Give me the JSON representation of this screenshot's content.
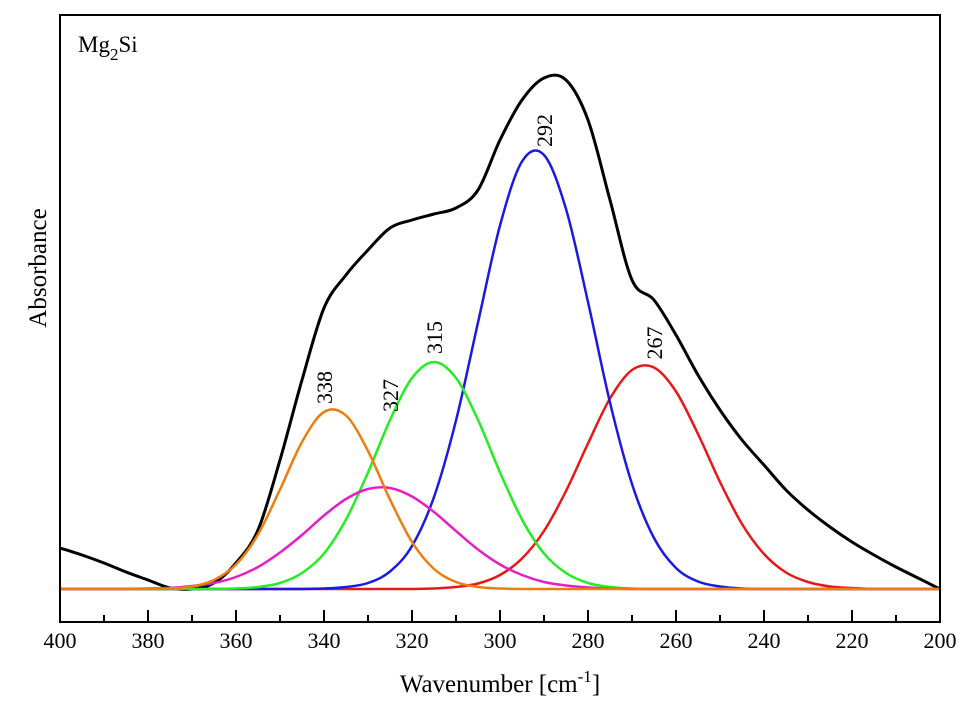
{
  "chart_data": {
    "type": "line",
    "sample_label": [
      "Mg",
      "2",
      "Si"
    ],
    "x_label": [
      "Wavenumber [cm",
      "-1",
      "]"
    ],
    "y_label": "Absorbance",
    "x": [
      400,
      395,
      390,
      385,
      380,
      375,
      370,
      365,
      360,
      355,
      350,
      345,
      340,
      335,
      330,
      325,
      320,
      315,
      310,
      305,
      300,
      295,
      290,
      285,
      280,
      275,
      270,
      265,
      260,
      255,
      250,
      245,
      240,
      235,
      230,
      225,
      220,
      215,
      210,
      205,
      200
    ],
    "xlim": [
      400,
      200
    ],
    "xticks": [
      400,
      380,
      360,
      340,
      320,
      300,
      280,
      260,
      240,
      220,
      200
    ],
    "xminor_ticks": [
      390,
      370,
      350,
      330,
      310,
      290,
      270,
      250,
      230,
      210
    ],
    "ylim": [
      -0.066,
      1.148
    ],
    "series": [
      {
        "color": "#000000",
        "width": 3,
        "values": [
          0.082,
          0.068,
          0.052,
          0.034,
          0.018,
          0.002,
          0,
          0.012,
          0.052,
          0.118,
          0.258,
          0.418,
          0.562,
          0.628,
          0.678,
          0.722,
          0.738,
          0.75,
          0.762,
          0.798,
          0.898,
          0.978,
          1.022,
          1.018,
          0.938,
          0.778,
          0.618,
          0.578,
          0.508,
          0.428,
          0.358,
          0.298,
          0.248,
          0.198,
          0.158,
          0.124,
          0.094,
          0.068,
          0.044,
          0.022,
          0
        ]
      },
      {
        "color": "#ee7d0f",
        "width": 2.5,
        "label": "338",
        "values": [
          0,
          0,
          0,
          0,
          0,
          0.001,
          0.005,
          0.018,
          0.049,
          0.109,
          0.199,
          0.294,
          0.354,
          0.347,
          0.276,
          0.179,
          0.094,
          0.04,
          0.014,
          0.004,
          0.001,
          0,
          0,
          0,
          0,
          0,
          0,
          0,
          0,
          0,
          0,
          0,
          0,
          0,
          0,
          0,
          0,
          0,
          0,
          0,
          0
        ]
      },
      {
        "color": "#e61fc4",
        "width": 2.5,
        "label": "327",
        "values": [
          0,
          0,
          0,
          0,
          0.001,
          0.002,
          0.006,
          0.012,
          0.024,
          0.044,
          0.073,
          0.108,
          0.147,
          0.18,
          0.2,
          0.202,
          0.185,
          0.154,
          0.116,
          0.079,
          0.049,
          0.028,
          0.014,
          0.007,
          0.003,
          0.001,
          0,
          0,
          0,
          0,
          0,
          0,
          0,
          0,
          0,
          0,
          0,
          0,
          0,
          0,
          0
        ]
      },
      {
        "color": "#22ee22",
        "width": 2.5,
        "label": "315",
        "values": [
          0,
          0,
          0,
          0,
          0,
          0,
          0,
          0,
          0.001,
          0.004,
          0.012,
          0.032,
          0.071,
          0.139,
          0.233,
          0.338,
          0.422,
          0.454,
          0.422,
          0.338,
          0.233,
          0.139,
          0.071,
          0.032,
          0.012,
          0.004,
          0.001,
          0,
          0,
          0,
          0,
          0,
          0,
          0,
          0,
          0,
          0,
          0,
          0,
          0,
          0
        ]
      },
      {
        "color": "#1a1ae0",
        "width": 2.5,
        "label": "292",
        "values": [
          0,
          0,
          0,
          0,
          0,
          0,
          0,
          0,
          0,
          0,
          0,
          0,
          0.001,
          0.004,
          0.012,
          0.035,
          0.086,
          0.184,
          0.337,
          0.533,
          0.727,
          0.855,
          0.868,
          0.76,
          0.574,
          0.373,
          0.21,
          0.102,
          0.042,
          0.015,
          0.005,
          0.001,
          0,
          0,
          0,
          0,
          0,
          0,
          0,
          0,
          0
        ]
      },
      {
        "color": "#e81818",
        "width": 2.5,
        "label": "267",
        "values": [
          0,
          0,
          0,
          0,
          0,
          0,
          0,
          0,
          0,
          0,
          0,
          0,
          0,
          0,
          0,
          0,
          0,
          0.001,
          0.004,
          0.011,
          0.028,
          0.061,
          0.116,
          0.196,
          0.291,
          0.381,
          0.438,
          0.443,
          0.395,
          0.31,
          0.214,
          0.13,
          0.07,
          0.033,
          0.014,
          0.005,
          0.002,
          0,
          0,
          0,
          0
        ]
      }
    ]
  }
}
